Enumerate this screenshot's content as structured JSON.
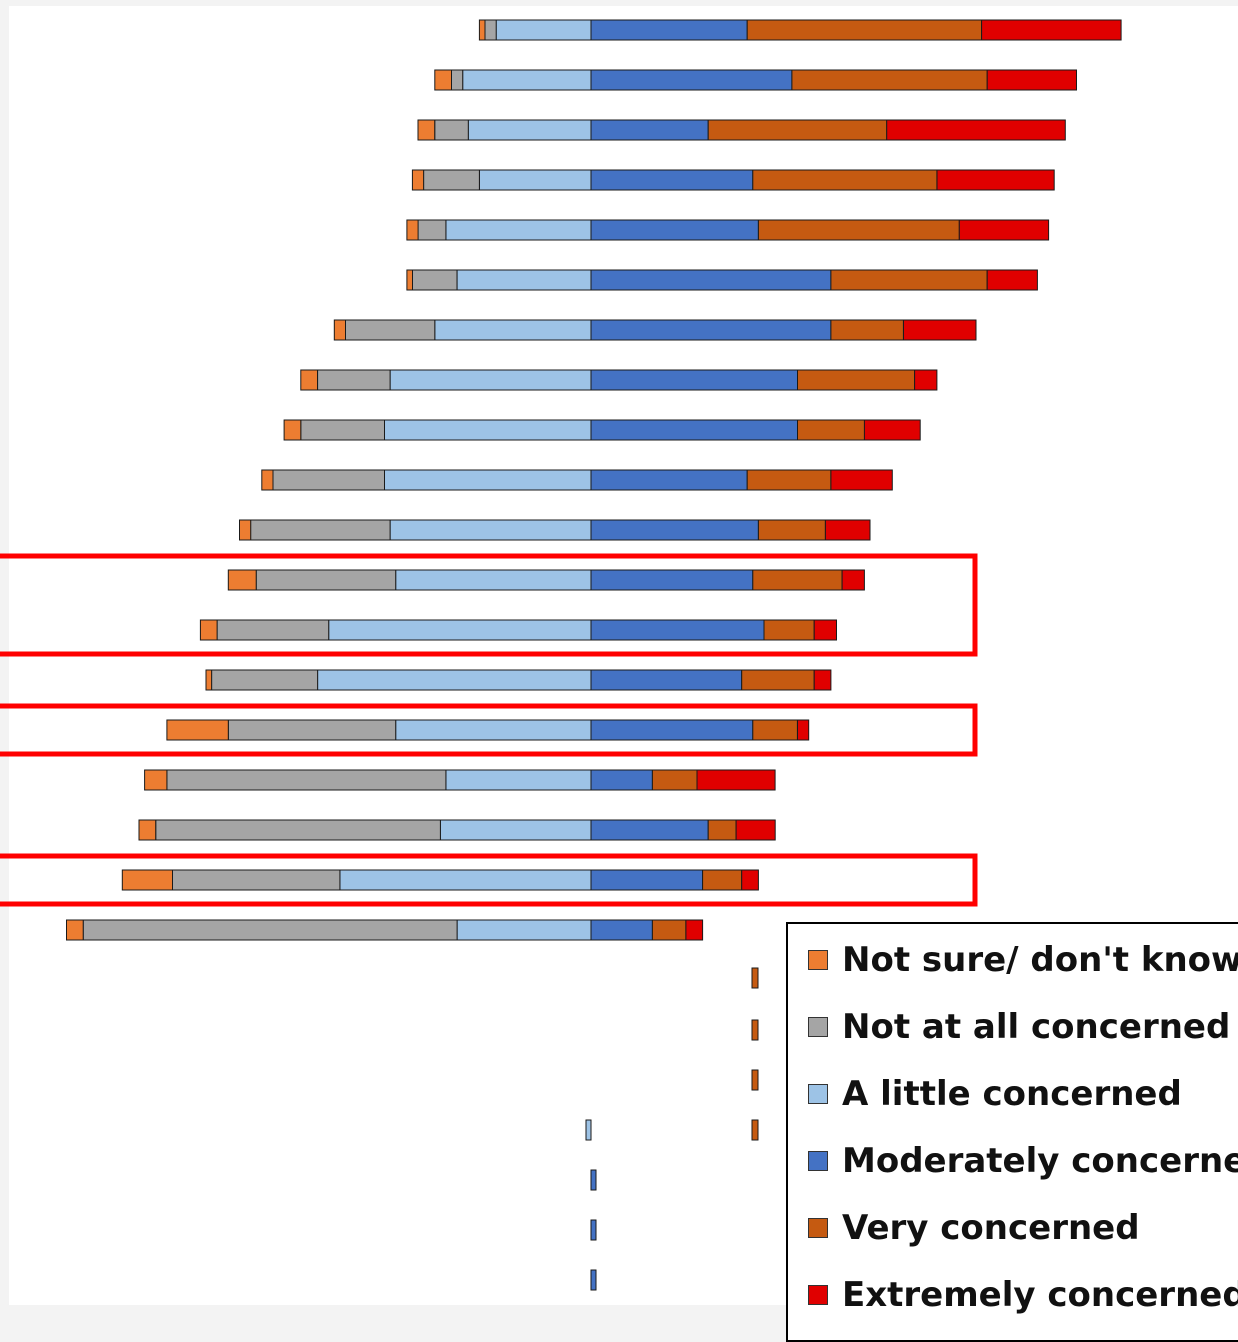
{
  "chart_data": {
    "type": "bar",
    "orientation": "horizontal",
    "stacking": "diverging",
    "categories": [
      "",
      "",
      "",
      "",
      "",
      "",
      "",
      "",
      "",
      "",
      "",
      "",
      "",
      "",
      "",
      "",
      "",
      "",
      ""
    ],
    "series": [
      {
        "name": "Not sure/ don't know",
        "color": "#ED7D31",
        "values": [
          1,
          3,
          3,
          2,
          2,
          1,
          2,
          3,
          3,
          2,
          2,
          5,
          3,
          1,
          11,
          4,
          3,
          9,
          3
        ]
      },
      {
        "name": "Not at all concerned",
        "color": "#A5A5A5",
        "values": [
          2,
          2,
          6,
          10,
          5,
          8,
          16,
          13,
          15,
          20,
          25,
          25,
          20,
          19,
          30,
          50,
          51,
          30,
          67
        ]
      },
      {
        "name": "A little concerned",
        "color": "#9DC3E6",
        "values": [
          17,
          23,
          22,
          20,
          26,
          24,
          28,
          36,
          37,
          37,
          36,
          35,
          47,
          49,
          35,
          26,
          27,
          45,
          24
        ]
      },
      {
        "name": "Moderately concerned",
        "color": "#4472C4",
        "values": [
          28,
          36,
          21,
          29,
          30,
          43,
          43,
          37,
          37,
          28,
          30,
          29,
          31,
          27,
          29,
          11,
          21,
          20,
          11
        ]
      },
      {
        "name": "Very concerned",
        "color": "#C55A11",
        "values": [
          42,
          35,
          32,
          33,
          36,
          28,
          13,
          21,
          12,
          15,
          12,
          16,
          9,
          13,
          8,
          8,
          5,
          7,
          6
        ]
      },
      {
        "name": "Extremely concerned",
        "color": "#E00000",
        "values": [
          25,
          16,
          32,
          21,
          16,
          9,
          13,
          4,
          10,
          11,
          8,
          4,
          4,
          3,
          2,
          14,
          7,
          3,
          3
        ]
      }
    ],
    "unit": "percent",
    "title": "",
    "xlabel": "",
    "ylabel": "",
    "legend": {
      "position": "bottom-right"
    },
    "highlighted_groups": [
      [
        11,
        12
      ],
      [
        14
      ],
      [
        17
      ]
    ],
    "highlight_color": "#FF0000",
    "grid": false
  }
}
